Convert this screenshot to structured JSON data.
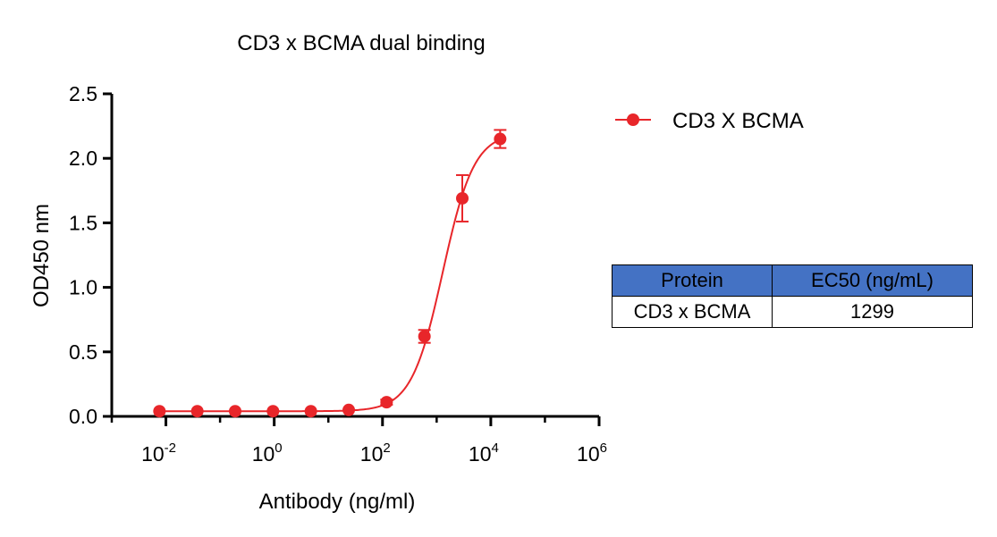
{
  "chart_data": {
    "type": "scatter",
    "title": "CD3 x BCMA dual binding",
    "xlabel": "Antibody (ng/ml)",
    "ylabel": "OD450 nm",
    "x_scale": "log10",
    "xlim": [
      0.001,
      1000000
    ],
    "ylim": [
      0,
      2.5
    ],
    "x_ticks": [
      {
        "base": "10",
        "exp": "-2",
        "value": 0.01
      },
      {
        "base": "10",
        "exp": "0",
        "value": 1
      },
      {
        "base": "10",
        "exp": "2",
        "value": 100
      },
      {
        "base": "10",
        "exp": "4",
        "value": 10000
      },
      {
        "base": "10",
        "exp": "6",
        "value": 1000000
      }
    ],
    "y_ticks": [
      "0.0",
      "0.5",
      "1.0",
      "1.5",
      "2.0",
      "2.5"
    ],
    "legend_position": "top-right",
    "series": [
      {
        "name": "CD3 X BCMA",
        "color": "#e8262a",
        "x": [
          0.0076,
          0.038,
          0.19,
          0.95,
          4.75,
          23.8,
          119,
          595,
          2976,
          14880
        ],
        "y": [
          0.04,
          0.04,
          0.04,
          0.04,
          0.04,
          0.05,
          0.11,
          0.62,
          1.69,
          2.15
        ],
        "err": [
          0.0,
          0.0,
          0.0,
          0.0,
          0.0,
          0.0,
          0.02,
          0.05,
          0.18,
          0.07
        ],
        "fit": {
          "bottom": 0.04,
          "top": 2.2,
          "ec50": 1299,
          "hill": 1.5
        }
      }
    ]
  },
  "ec50_table": {
    "headers": [
      "Protein",
      "EC50 (ng/mL)"
    ],
    "rows": [
      [
        "CD3 x BCMA",
        "1299"
      ]
    ]
  }
}
